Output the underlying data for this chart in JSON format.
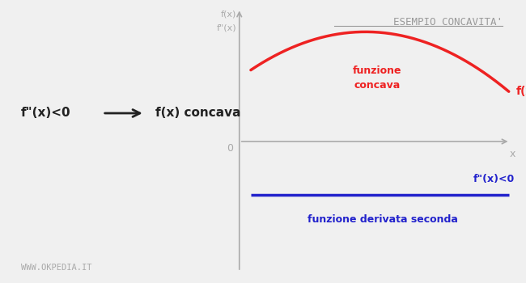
{
  "bg_color": "#f0f0f0",
  "title": "ESEMPIO CONCAVITA'",
  "title_color": "#999999",
  "title_fontsize": 9,
  "axis_color": "#aaaaaa",
  "concave_label": "funzione\nconcava",
  "concave_label_color": "#ee2222",
  "fx_label": "f(x)",
  "fx_label_color": "#ee2222",
  "deriv_label": "f\"(x)<0",
  "deriv_label_color": "#2222cc",
  "deriv_sublabel": "funzione derivata seconda",
  "deriv_sublabel_color": "#2222cc",
  "yaxis_label_1": "f(x)",
  "yaxis_label_2": "f\"(x)",
  "yaxis_label_color": "#aaaaaa",
  "xaxis_label": "x",
  "xaxis_label_color": "#aaaaaa",
  "zero_label": "0",
  "watermark": "WWW.OKPEDIA.IT",
  "watermark_color": "#aaaaaa",
  "curve_color": "#ee2222",
  "deriv_line_color": "#2222cc",
  "left_eq": "f\"(x)<0",
  "left_result": "f(x) concava",
  "left_text_color": "#222222",
  "arrow_color": "#222222",
  "ox": 0.455,
  "oy": 0.5
}
